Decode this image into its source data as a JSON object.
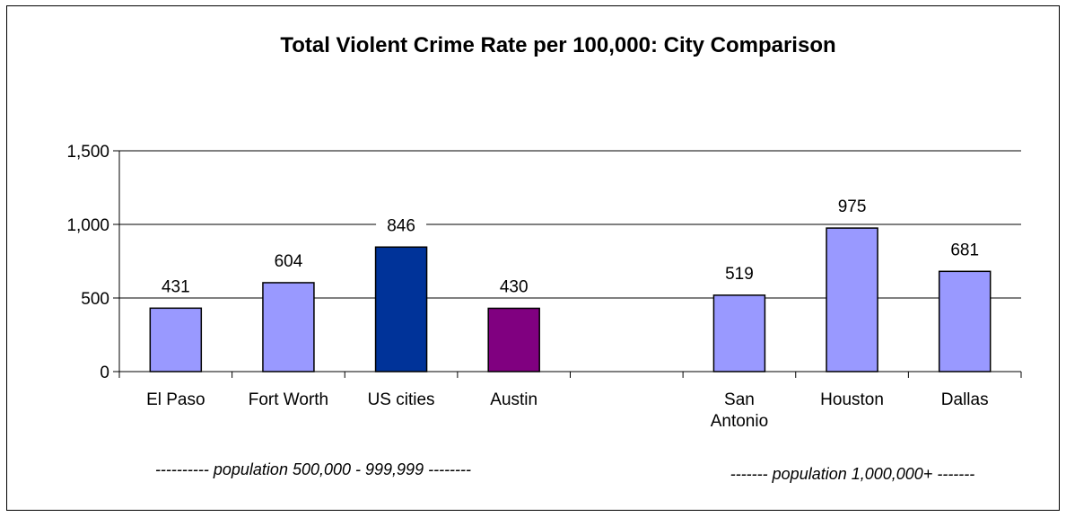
{
  "chart_data": {
    "type": "bar",
    "title": "Total Violent Crime Rate per 100,000: City Comparison",
    "xlabel": "",
    "ylabel": "",
    "ylim": [
      0,
      1500
    ],
    "yticks": [
      "0",
      "500",
      "1,000",
      "1,500"
    ],
    "grid": true,
    "categories": [
      [
        "El Paso"
      ],
      [
        "Fort Worth"
      ],
      [
        "US cities"
      ],
      [
        "Austin"
      ],
      [
        ""
      ],
      [
        "San",
        "Antonio"
      ],
      [
        "Houston"
      ],
      [
        "Dallas"
      ]
    ],
    "values": [
      431,
      604,
      846,
      430,
      null,
      519,
      975,
      681
    ],
    "data_labels": [
      "431",
      "604",
      "846",
      "430",
      "",
      "519",
      "975",
      "681"
    ],
    "colors": [
      "#9999ff",
      "#9999ff",
      "#003399",
      "#800080",
      "",
      "#9999ff",
      "#9999ff",
      "#9999ff"
    ],
    "annotations": [
      "---------- population 500,000 - 999,999 --------",
      "------- population 1,000,000+ -------"
    ]
  }
}
